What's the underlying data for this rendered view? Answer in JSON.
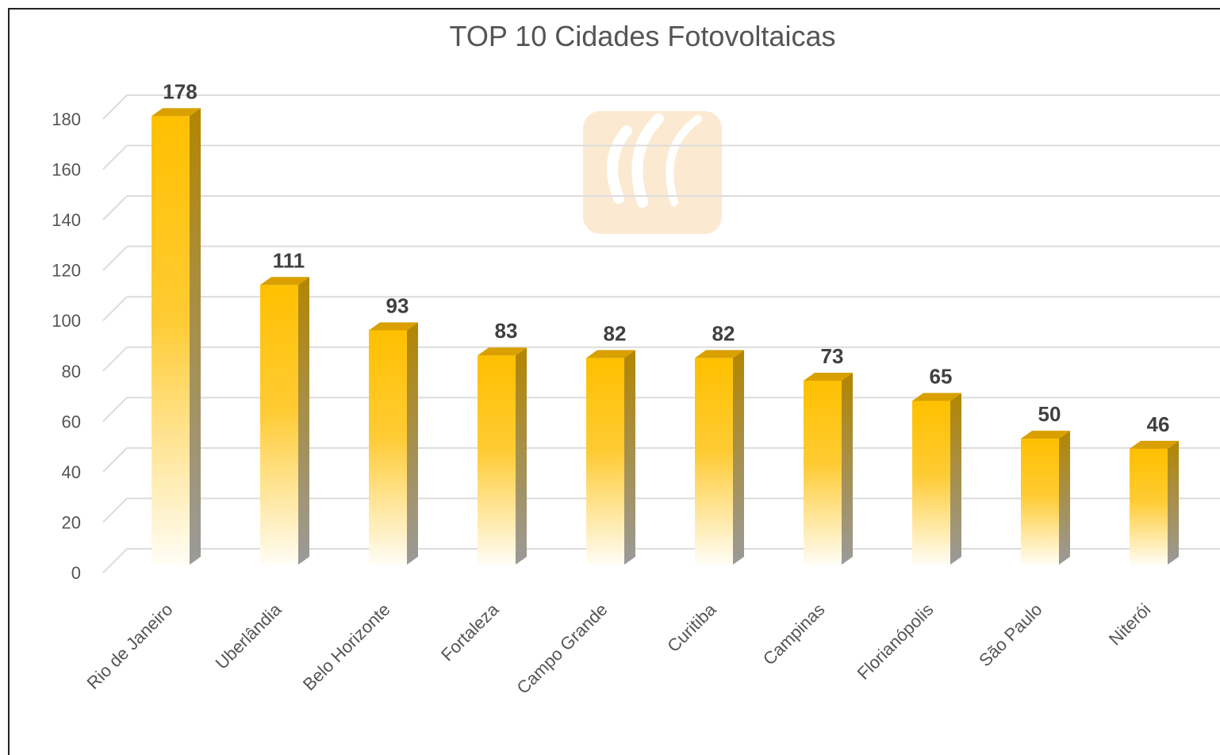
{
  "chart_data": {
    "type": "bar",
    "title": "TOP 10 Cidades Fotovoltaicas",
    "categories": [
      "Rio de Janeiro",
      "Uberlândia",
      "Belo Horizonte",
      "Fortaleza",
      "Campo Grande",
      "Curitiba",
      "Campinas",
      "Florianópolis",
      "São Paulo",
      "Niterói"
    ],
    "values": [
      178,
      111,
      93,
      83,
      82,
      82,
      73,
      65,
      50,
      46
    ],
    "ylim": [
      0,
      180
    ],
    "yticks": [
      "0",
      "20",
      "40",
      "60",
      "80",
      "100",
      "120",
      "140",
      "160",
      "180"
    ],
    "data_labels": [
      "178",
      "111",
      "93",
      "83",
      "82",
      "82",
      "73",
      "65",
      "50",
      "46"
    ],
    "grid": true,
    "legend": "none",
    "style": "3d-column",
    "bar_color": "#FFC000",
    "bar_side_color": "#B8860B"
  }
}
